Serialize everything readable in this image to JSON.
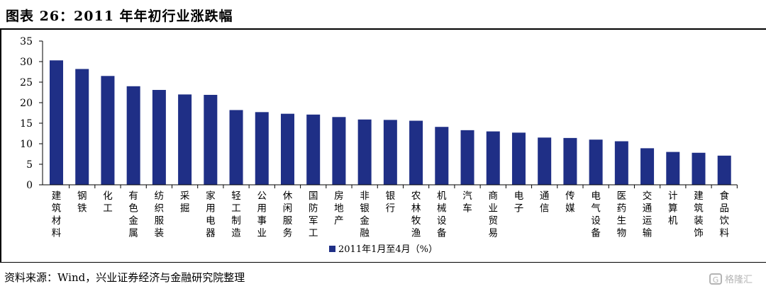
{
  "header": {
    "title": "图表 26：2011 年年初行业涨跌幅"
  },
  "footer": {
    "source": "资料来源：Wind，兴业证券经济与金融研究院整理",
    "watermark": "格隆汇"
  },
  "colors": {
    "bar": "#1f2f86",
    "axis": "#000000"
  },
  "chart_data": {
    "type": "bar",
    "categories": [
      "建筑材料",
      "钢铁",
      "化工",
      "有色金属",
      "纺织服装",
      "采掘",
      "家用电器",
      "轻工制造",
      "公用事业",
      "休闲服务",
      "国防军工",
      "房地产",
      "非银金融",
      "银行",
      "农林牧渔",
      "机械设备",
      "汽车",
      "商业贸易",
      "电子",
      "通信",
      "传媒",
      "电气设备",
      "医药生物",
      "交通运输",
      "计算机",
      "建筑装饰",
      "食品饮料"
    ],
    "series": [
      {
        "name": "2011年1月至4月（%）",
        "values": [
          30.3,
          28.2,
          26.5,
          24.0,
          23.1,
          22.0,
          21.9,
          18.2,
          17.7,
          17.3,
          17.1,
          16.5,
          15.9,
          15.8,
          15.6,
          14.1,
          13.3,
          13.0,
          12.7,
          11.5,
          11.4,
          11.0,
          10.6,
          8.9,
          8.0,
          7.8,
          7.1
        ]
      }
    ],
    "ylim": [
      0,
      35
    ],
    "yticks": [
      "0",
      "5",
      "10",
      "15",
      "20",
      "25",
      "30",
      "35"
    ],
    "grid": false,
    "legend_position": "bottom-center"
  }
}
